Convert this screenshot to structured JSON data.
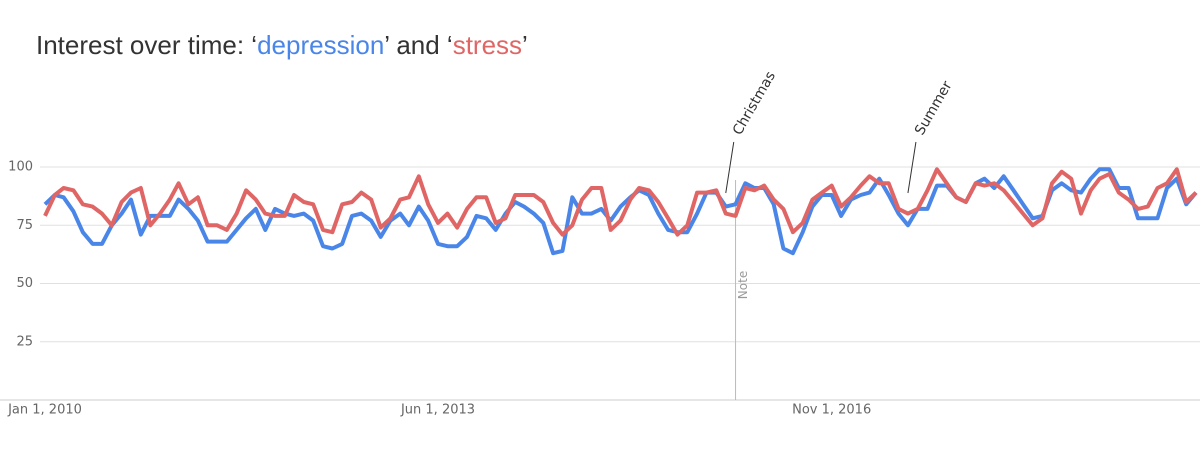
{
  "chart_data": {
    "type": "line",
    "title_parts": [
      "Interest over time: ‘",
      "’ and ‘",
      "’"
    ],
    "x": [
      "2010-01-01",
      "2010-02-01",
      "2010-03-01",
      "2010-04-01",
      "2010-05-01",
      "2010-06-01",
      "2010-07-01",
      "2010-08-01",
      "2010-09-01",
      "2010-10-01",
      "2010-11-01",
      "2010-12-01",
      "2011-01-01",
      "2011-02-01",
      "2011-03-01",
      "2011-04-01",
      "2011-05-01",
      "2011-06-01",
      "2011-07-01",
      "2011-08-01",
      "2011-09-01",
      "2011-10-01",
      "2011-11-01",
      "2011-12-01",
      "2012-01-01",
      "2012-02-01",
      "2012-03-01",
      "2012-04-01",
      "2012-05-01",
      "2012-06-01",
      "2012-07-01",
      "2012-08-01",
      "2012-09-01",
      "2012-10-01",
      "2012-11-01",
      "2012-12-01",
      "2013-01-01",
      "2013-02-01",
      "2013-03-01",
      "2013-04-01",
      "2013-05-01",
      "2013-06-01",
      "2013-07-01",
      "2013-08-01",
      "2013-09-01",
      "2013-10-01",
      "2013-11-01",
      "2013-12-01",
      "2014-01-01",
      "2014-02-01",
      "2014-03-01",
      "2014-04-01",
      "2014-05-01",
      "2014-06-01",
      "2014-07-01",
      "2014-08-01",
      "2014-09-01",
      "2014-10-01",
      "2014-11-01",
      "2014-12-01",
      "2015-01-01",
      "2015-02-01",
      "2015-03-01",
      "2015-04-01",
      "2015-05-01",
      "2015-06-01",
      "2015-07-01",
      "2015-08-01",
      "2015-09-01",
      "2015-10-01",
      "2015-11-01",
      "2015-12-01",
      "2016-01-01",
      "2016-02-01",
      "2016-03-01",
      "2016-04-01",
      "2016-05-01",
      "2016-06-01",
      "2016-07-01",
      "2016-08-01",
      "2016-09-01",
      "2016-10-01",
      "2016-11-01",
      "2016-12-01",
      "2017-01-01",
      "2017-02-01",
      "2017-03-01",
      "2017-04-01",
      "2017-05-01",
      "2017-06-01",
      "2017-07-01",
      "2017-08-01",
      "2017-09-01",
      "2017-10-01",
      "2017-11-01",
      "2017-12-01",
      "2018-01-01",
      "2018-02-01",
      "2018-03-01",
      "2018-04-01",
      "2018-05-01",
      "2018-06-01",
      "2018-07-01",
      "2018-08-01",
      "2018-09-01",
      "2018-10-01",
      "2018-11-01",
      "2018-12-01",
      "2019-01-01",
      "2019-02-01",
      "2019-03-01",
      "2019-04-01",
      "2019-05-01",
      "2019-06-01",
      "2019-07-01",
      "2019-08-01",
      "2019-09-01",
      "2019-10-01",
      "2019-11-01",
      "2019-12-01",
      "2020-01-01"
    ],
    "series": [
      {
        "name": "depression",
        "color": "#4a86e8",
        "values": [
          84,
          88,
          87,
          81,
          72,
          67,
          67,
          75,
          80,
          86,
          71,
          79,
          79,
          79,
          86,
          82,
          77,
          68,
          68,
          68,
          73,
          78,
          82,
          73,
          82,
          80,
          79,
          80,
          77,
          66,
          65,
          67,
          79,
          80,
          77,
          70,
          77,
          80,
          75,
          83,
          77,
          67,
          66,
          66,
          70,
          79,
          78,
          73,
          80,
          85,
          83,
          80,
          76,
          63,
          64,
          87,
          80,
          80,
          82,
          77,
          83,
          87,
          90,
          88,
          80,
          73,
          72,
          72,
          80,
          89,
          89,
          83,
          84,
          93,
          91,
          91,
          84,
          65,
          63,
          72,
          83,
          88,
          88,
          79,
          86,
          88,
          89,
          95,
          88,
          80,
          75,
          82,
          82,
          92,
          92,
          87,
          85,
          93,
          95,
          91,
          96,
          90,
          84,
          78,
          79,
          90,
          93,
          90,
          89,
          95,
          99,
          99,
          91,
          91,
          78,
          78,
          78,
          91,
          95,
          84,
          89
        ]
      },
      {
        "name": "stress",
        "color": "#e06666",
        "values": [
          79,
          88,
          91,
          90,
          84,
          83,
          80,
          75,
          85,
          89,
          91,
          75,
          80,
          86,
          93,
          84,
          87,
          75,
          75,
          73,
          80,
          90,
          86,
          80,
          79,
          79,
          88,
          85,
          84,
          73,
          72,
          84,
          85,
          89,
          86,
          74,
          78,
          86,
          87,
          96,
          84,
          76,
          80,
          74,
          82,
          87,
          87,
          76,
          78,
          88,
          88,
          88,
          85,
          76,
          71,
          75,
          86,
          91,
          91,
          73,
          77,
          86,
          91,
          90,
          85,
          78,
          71,
          75,
          89,
          89,
          90,
          80,
          79,
          91,
          90,
          92,
          86,
          82,
          72,
          76,
          86,
          89,
          92,
          83,
          87,
          92,
          96,
          93,
          93,
          82,
          80,
          82,
          90,
          99,
          93,
          87,
          85,
          93,
          92,
          93,
          90,
          85,
          80,
          75,
          78,
          93,
          98,
          95,
          80,
          90,
          95,
          97,
          89,
          86,
          82,
          83,
          91,
          93,
          99,
          85,
          89
        ]
      }
    ],
    "xlim": [
      "2010-01-01",
      "2020-01-01"
    ],
    "xticks": [
      {
        "value": "2010-01-01",
        "label": "Jan 1, 2010"
      },
      {
        "value": "2013-06-01",
        "label": "Jun 1, 2013"
      },
      {
        "value": "2016-11-01",
        "label": "Nov 1, 2016"
      }
    ],
    "ylim": [
      0,
      100
    ],
    "yticks": [
      25,
      50,
      75,
      100
    ],
    "grid": true,
    "annotations": [
      {
        "text": "Christmas",
        "x": "2015-12-01"
      },
      {
        "text": "Summer",
        "x": "2017-07-01"
      }
    ],
    "note": {
      "text": "Note",
      "x": "2016-01-01"
    }
  }
}
